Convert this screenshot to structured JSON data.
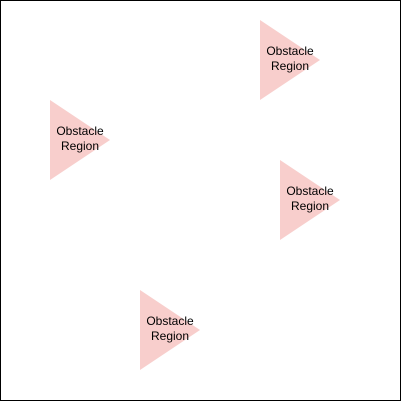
{
  "diagram": {
    "fill_color": "#f8cecc",
    "text_color": "#000000",
    "border_color": "#000000",
    "obstacles": [
      {
        "label": "Obstacle\nRegion"
      },
      {
        "label": "Obstacle\nRegion"
      },
      {
        "label": "Obstacle\nRegion"
      },
      {
        "label": "Obstacle\nRegion"
      }
    ]
  }
}
